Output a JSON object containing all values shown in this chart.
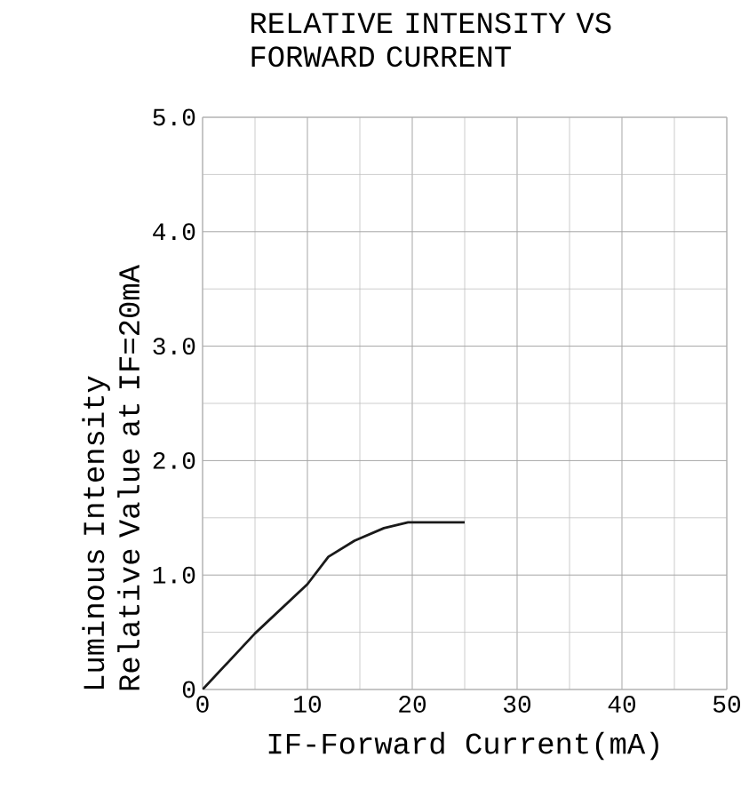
{
  "chart_data": {
    "type": "line",
    "title": "RELATIVE INTENSITY VS FORWARD CURRENT",
    "xlabel": "IF-Forward   Current(mA)",
    "ylabel": "Luminous Intensity Relative Value at IF=20mA",
    "x": [
      0,
      5,
      10,
      12,
      14.5,
      17.3,
      19.6,
      25
    ],
    "series": [
      {
        "color": "#1a1a1a",
        "values": [
          0,
          0.49,
          0.92,
          1.16,
          1.3,
          1.41,
          1.46,
          1.46
        ]
      }
    ],
    "xlim": [
      0,
      50
    ],
    "ylim": [
      0,
      5
    ],
    "xticks": [
      0,
      10,
      20,
      30,
      40,
      50
    ],
    "yticks": [
      0,
      {
        "value": 1,
        "label": "1.0"
      },
      {
        "value": 2,
        "label": "2.0"
      },
      {
        "value": 3,
        "label": "3.0"
      },
      {
        "value": 4,
        "label": "4.0"
      },
      {
        "value": 5,
        "label": "5.0"
      }
    ],
    "grid": true,
    "marker": "none",
    "line_style": "solid"
  }
}
